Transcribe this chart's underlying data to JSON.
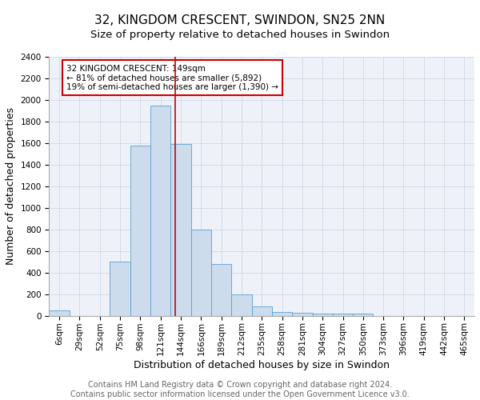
{
  "title": "32, KINGDOM CRESCENT, SWINDON, SN25 2NN",
  "subtitle": "Size of property relative to detached houses in Swindon",
  "xlabel": "Distribution of detached houses by size in Swindon",
  "ylabel": "Number of detached properties",
  "footer_line1": "Contains HM Land Registry data © Crown copyright and database right 2024.",
  "footer_line2": "Contains public sector information licensed under the Open Government Licence v3.0.",
  "bin_labels": [
    "6sqm",
    "29sqm",
    "52sqm",
    "75sqm",
    "98sqm",
    "121sqm",
    "144sqm",
    "166sqm",
    "189sqm",
    "212sqm",
    "235sqm",
    "258sqm",
    "281sqm",
    "304sqm",
    "327sqm",
    "350sqm",
    "373sqm",
    "396sqm",
    "419sqm",
    "442sqm",
    "465sqm"
  ],
  "bar_heights": [
    50,
    0,
    0,
    500,
    1580,
    1950,
    1590,
    800,
    480,
    195,
    90,
    35,
    30,
    20,
    20,
    20,
    0,
    0,
    0,
    0,
    0
  ],
  "bar_color": "#ccdcec",
  "bar_edge_color": "#5a9fd4",
  "marker_line_color": "#cc0000",
  "annotation_text": "32 KINGDOM CRESCENT: 149sqm\n← 81% of detached houses are smaller (5,892)\n19% of semi-detached houses are larger (1,390) →",
  "annotation_box_color": "#ffffff",
  "annotation_box_edge": "#cc0000",
  "ylim": [
    0,
    2400
  ],
  "yticks": [
    0,
    200,
    400,
    600,
    800,
    1000,
    1200,
    1400,
    1600,
    1800,
    2000,
    2200,
    2400
  ],
  "grid_color": "#d0d8e8",
  "background_color": "#eef2f8",
  "title_fontsize": 11,
  "subtitle_fontsize": 9.5,
  "axis_label_fontsize": 9,
  "tick_fontsize": 7.5,
  "footer_fontsize": 7
}
